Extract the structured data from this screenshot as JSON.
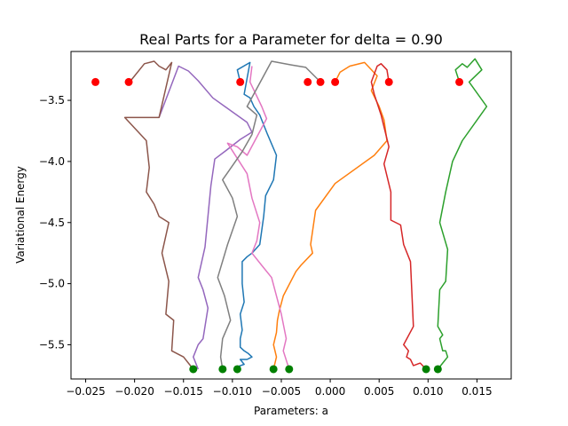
{
  "chart_data": {
    "type": "line",
    "title": "Real Parts for a Parameter for delta = 0.90",
    "xlabel": "Parameters: a",
    "ylabel": "Variational Energy",
    "xlim": [
      -0.0265,
      0.0185
    ],
    "ylim": [
      -5.78,
      -3.1
    ],
    "xticks": [
      -0.025,
      -0.02,
      -0.015,
      -0.01,
      -0.005,
      0.0,
      0.005,
      0.01,
      0.015
    ],
    "xtick_labels": [
      "−0.025",
      "−0.020",
      "−0.015",
      "−0.010",
      "−0.005",
      "0.000",
      "0.005",
      "0.010",
      "0.015"
    ],
    "yticks": [
      -5.5,
      -5.0,
      -4.5,
      -4.0,
      -3.5
    ],
    "ytick_labels": [
      "−5.5",
      "−5.0",
      "−4.5",
      "−4.0",
      "−3.5"
    ],
    "grid": false,
    "series": [
      {
        "color": "#1f77b4",
        "x": [
          -0.0092,
          -0.0095,
          -0.0082,
          -0.0085,
          -0.0088,
          -0.0082,
          -0.0078,
          -0.0072,
          -0.0064,
          -0.0055,
          -0.0058,
          -0.0066,
          -0.0068,
          -0.0072,
          -0.008,
          -0.0085,
          -0.009,
          -0.009,
          -0.0088,
          -0.0092,
          -0.009,
          -0.0092,
          -0.0092,
          -0.0088,
          -0.0084,
          -0.008,
          -0.0085,
          -0.0092,
          -0.0088,
          -0.0095,
          -0.0095
        ],
        "y": [
          -3.35,
          -3.25,
          -3.19,
          -3.32,
          -3.45,
          -3.48,
          -3.55,
          -3.62,
          -3.78,
          -3.95,
          -4.15,
          -4.28,
          -4.45,
          -4.68,
          -4.75,
          -4.78,
          -4.82,
          -5.0,
          -5.15,
          -5.25,
          -5.38,
          -5.45,
          -5.52,
          -5.55,
          -5.57,
          -5.6,
          -5.62,
          -5.62,
          -5.66,
          -5.68,
          -5.7
        ]
      },
      {
        "color": "#ff7f0e",
        "x": [
          0.0005,
          0.001,
          0.002,
          0.0035,
          0.0048,
          0.0042,
          0.005,
          0.0055,
          0.0058,
          0.0045,
          0.0005,
          -0.0015,
          -0.002,
          -0.0018,
          -0.003,
          -0.0035,
          -0.0048,
          -0.0052,
          -0.0054,
          -0.0055,
          -0.0058,
          -0.0055,
          -0.0058
        ],
        "y": [
          -3.35,
          -3.27,
          -3.22,
          -3.19,
          -3.3,
          -3.42,
          -3.55,
          -3.66,
          -3.83,
          -3.95,
          -4.18,
          -4.4,
          -4.68,
          -4.75,
          -4.85,
          -4.9,
          -5.1,
          -5.22,
          -5.3,
          -5.4,
          -5.5,
          -5.6,
          -5.7
        ]
      },
      {
        "color": "#2ca02c",
        "x": [
          0.0132,
          0.0128,
          0.0135,
          0.014,
          0.0148,
          0.0155,
          0.0142,
          0.016,
          0.0135,
          0.0125,
          0.0118,
          0.0112,
          0.012,
          0.0118,
          0.0112,
          0.011,
          0.0115,
          0.0112,
          0.0115,
          0.0118,
          0.012,
          0.0115,
          0.011
        ],
        "y": [
          -3.35,
          -3.25,
          -3.2,
          -3.23,
          -3.16,
          -3.25,
          -3.35,
          -3.55,
          -3.83,
          -4.0,
          -4.25,
          -4.5,
          -4.72,
          -4.98,
          -5.05,
          -5.35,
          -5.42,
          -5.45,
          -5.55,
          -5.55,
          -5.6,
          -5.65,
          -5.7
        ]
      },
      {
        "color": "#d62728",
        "x": [
          0.006,
          0.0058,
          0.0052,
          0.0048,
          0.0042,
          0.0045,
          0.0052,
          0.006,
          0.0055,
          0.0062,
          0.0062,
          0.0072,
          0.0075,
          0.0082,
          0.0085,
          0.0075,
          0.008,
          0.0078,
          0.0082,
          0.0085,
          0.0092,
          0.0098
        ],
        "y": [
          -3.35,
          -3.25,
          -3.2,
          -3.22,
          -3.35,
          -3.45,
          -3.62,
          -3.88,
          -4.02,
          -4.25,
          -4.48,
          -4.52,
          -4.68,
          -4.82,
          -5.35,
          -5.5,
          -5.55,
          -5.6,
          -5.62,
          -5.67,
          -5.65,
          -5.7
        ]
      },
      {
        "color": "#9467bd",
        "x": [
          -0.0135,
          -0.014,
          -0.0135,
          -0.013,
          -0.0128,
          -0.0125,
          -0.013,
          -0.0135,
          -0.0128,
          -0.0125,
          -0.0122,
          -0.0118,
          -0.0108,
          -0.0092,
          -0.008,
          -0.0085,
          -0.012,
          -0.0135,
          -0.0145,
          -0.0155,
          -0.0175
        ],
        "y": [
          -5.7,
          -5.6,
          -5.5,
          -5.45,
          -5.35,
          -5.2,
          -5.05,
          -4.95,
          -4.7,
          -4.45,
          -4.2,
          -3.98,
          -3.92,
          -3.82,
          -3.76,
          -3.68,
          -3.48,
          -3.34,
          -3.26,
          -3.22,
          -3.64
        ]
      },
      {
        "color": "#8c564b",
        "x": [
          -0.0205,
          -0.019,
          -0.018,
          -0.0175,
          -0.0168,
          -0.0162,
          -0.0175,
          -0.021,
          -0.0188,
          -0.0185,
          -0.0188,
          -0.018,
          -0.0175,
          -0.0165,
          -0.0172,
          -0.0165,
          -0.0168,
          -0.016,
          -0.0162,
          -0.015,
          -0.0145,
          -0.014
        ],
        "y": [
          -3.35,
          -3.2,
          -3.18,
          -3.22,
          -3.25,
          -3.19,
          -3.64,
          -3.64,
          -3.83,
          -4.05,
          -4.25,
          -4.35,
          -4.45,
          -4.5,
          -4.75,
          -4.98,
          -5.25,
          -5.3,
          -5.55,
          -5.6,
          -5.65,
          -5.7
        ]
      },
      {
        "color": "#e377c2",
        "x": [
          -0.008,
          -0.0082,
          -0.007,
          -0.0065,
          -0.0075,
          -0.0085,
          -0.0095,
          -0.0105,
          -0.0085,
          -0.008,
          -0.0072,
          -0.0075,
          -0.008,
          -0.007,
          -0.006,
          -0.0055,
          -0.005,
          -0.0045,
          -0.0048,
          -0.0042
        ],
        "y": [
          -3.22,
          -3.35,
          -3.55,
          -3.65,
          -3.8,
          -3.95,
          -3.88,
          -3.85,
          -4.1,
          -4.3,
          -4.5,
          -4.65,
          -4.75,
          -4.85,
          -4.95,
          -5.1,
          -5.25,
          -5.45,
          -5.55,
          -5.7
        ]
      },
      {
        "color": "#7f7f7f",
        "x": [
          -0.001,
          -0.0025,
          -0.004,
          -0.006,
          -0.0085,
          -0.0075,
          -0.008,
          -0.009,
          -0.011,
          -0.01,
          -0.0095,
          -0.0105,
          -0.0115,
          -0.0108,
          -0.0102,
          -0.011,
          -0.0112,
          -0.011
        ],
        "y": [
          -3.35,
          -3.23,
          -3.21,
          -3.18,
          -3.55,
          -3.62,
          -3.78,
          -3.92,
          -4.15,
          -4.3,
          -4.45,
          -4.68,
          -4.95,
          -5.1,
          -5.3,
          -5.45,
          -5.6,
          -5.7
        ]
      }
    ],
    "start_points": {
      "color": "#ff0000",
      "x": [
        -0.024,
        -0.0206,
        -0.0092,
        -0.0023,
        -0.001,
        0.0005,
        0.006,
        0.0132
      ],
      "y": [
        -3.35,
        -3.35,
        -3.35,
        -3.35,
        -3.35,
        -3.35,
        -3.35,
        -3.35
      ]
    },
    "end_points": {
      "color": "#008000",
      "x": [
        -0.014,
        -0.011,
        -0.0095,
        -0.0058,
        -0.0042,
        0.0098,
        0.011
      ],
      "y": [
        -5.7,
        -5.7,
        -5.7,
        -5.7,
        -5.7,
        -5.7,
        -5.7
      ]
    }
  }
}
